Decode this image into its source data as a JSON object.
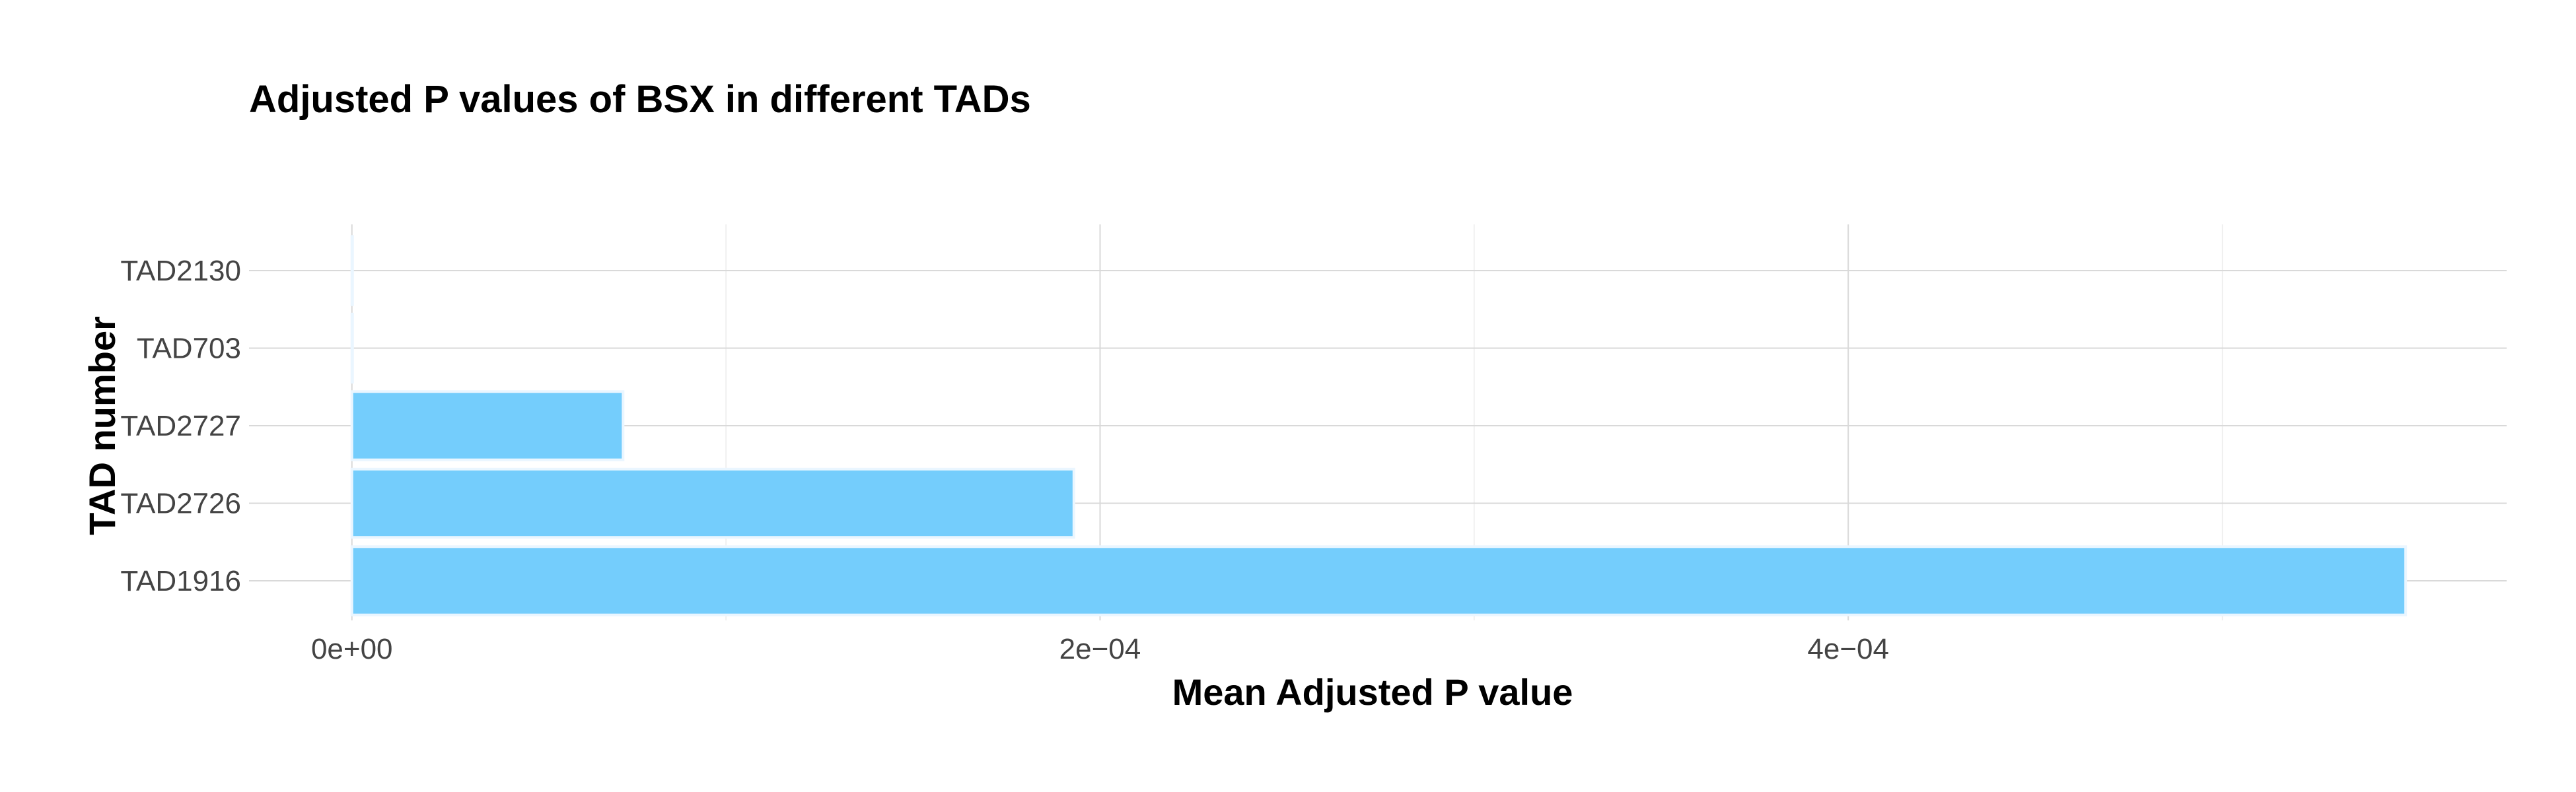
{
  "chart_data": {
    "type": "bar",
    "orientation": "horizontal",
    "title": "Adjusted P values of BSX in different TADs",
    "xlabel": "Mean Adjusted P value",
    "ylabel": "TAD number",
    "categories": [
      "TAD1916",
      "TAD2726",
      "TAD2727",
      "TAD703",
      "TAD2130"
    ],
    "values": [
      0.000549,
      0.000193,
      7.25e-05,
      1e-07,
      1e-07
    ],
    "xlim": [
      -2.75e-05,
      0.000576
    ],
    "x_ticks": [
      0,
      0.0002,
      0.0004
    ],
    "x_tick_labels": [
      "0e+00",
      "2e−04",
      "4e−04"
    ],
    "x_minor_ticks": [
      0.0001,
      0.0003,
      0.0005
    ],
    "grid": true,
    "legend": "none",
    "bar_color": "#74cdfc"
  }
}
